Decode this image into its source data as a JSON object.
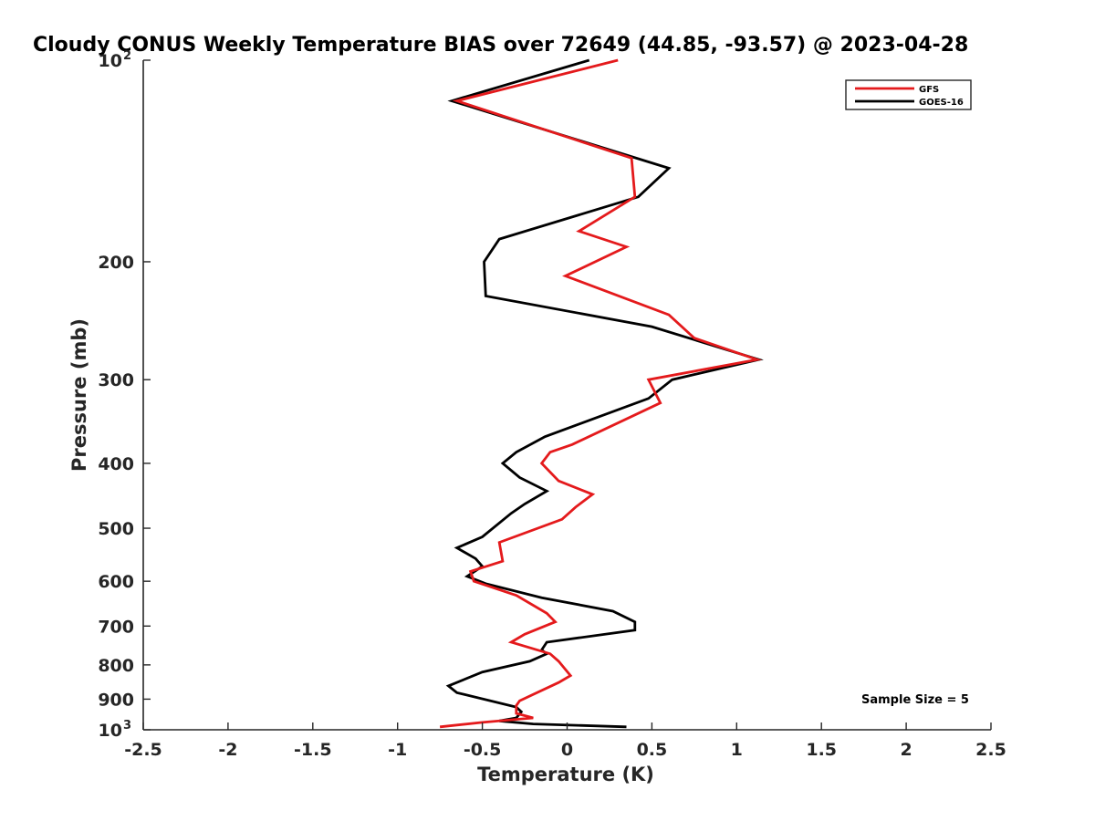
{
  "chart_data": {
    "type": "line",
    "title": "Cloudy CONUS Weekly Temperature BIAS over 72649 (44.85, -93.57) @ 2023-04-28",
    "xlabel": "Temperature (K)",
    "ylabel": "Pressure (mb)",
    "xlim": [
      -2.5,
      2.5
    ],
    "ylim": [
      1000,
      100
    ],
    "y_scale": "log",
    "y_reversed": true,
    "grid": false,
    "legend_position": "top-right",
    "x_ticks": [
      "-2.5",
      "-2",
      "-1.5",
      "-1",
      "-0.5",
      "0",
      "0.5",
      "1",
      "1.5",
      "2",
      "2.5"
    ],
    "x_tick_values": [
      -2.5,
      -2,
      -1.5,
      -1,
      -0.5,
      0,
      0.5,
      1,
      1.5,
      2,
      2.5
    ],
    "y_ticks": [
      {
        "value": 100,
        "label": "10",
        "sup": "2"
      },
      {
        "value": 200,
        "label": "200"
      },
      {
        "value": 300,
        "label": "300"
      },
      {
        "value": 400,
        "label": "400"
      },
      {
        "value": 500,
        "label": "500"
      },
      {
        "value": 600,
        "label": "600"
      },
      {
        "value": 700,
        "label": "700"
      },
      {
        "value": 800,
        "label": "800"
      },
      {
        "value": 900,
        "label": "900"
      },
      {
        "value": 1000,
        "label": "10",
        "sup": "3"
      }
    ],
    "annotation": "Sample Size = 5",
    "series": [
      {
        "name": "GFS",
        "color": "#e41a1c",
        "points": [
          [
            0.3,
            100
          ],
          [
            -0.65,
            115
          ],
          [
            0.38,
            140
          ],
          [
            0.4,
            160
          ],
          [
            0.07,
            180
          ],
          [
            0.35,
            190
          ],
          [
            -0.01,
            210
          ],
          [
            0.6,
            240
          ],
          [
            0.75,
            260
          ],
          [
            1.12,
            280
          ],
          [
            0.48,
            300
          ],
          [
            0.55,
            325
          ],
          [
            0.03,
            375
          ],
          [
            -0.1,
            385
          ],
          [
            -0.15,
            400
          ],
          [
            -0.05,
            425
          ],
          [
            0.15,
            445
          ],
          [
            0.05,
            465
          ],
          [
            -0.03,
            485
          ],
          [
            -0.4,
            525
          ],
          [
            -0.38,
            560
          ],
          [
            -0.57,
            580
          ],
          [
            -0.55,
            600
          ],
          [
            -0.3,
            630
          ],
          [
            -0.12,
            670
          ],
          [
            -0.07,
            690
          ],
          [
            -0.25,
            720
          ],
          [
            -0.33,
            740
          ],
          [
            -0.1,
            770
          ],
          [
            -0.05,
            790
          ],
          [
            0.02,
            830
          ],
          [
            -0.05,
            850
          ],
          [
            -0.28,
            905
          ],
          [
            -0.3,
            920
          ],
          [
            -0.3,
            945
          ],
          [
            -0.2,
            960
          ],
          [
            -0.5,
            975
          ],
          [
            -0.75,
            990
          ]
        ]
      },
      {
        "name": "GOES-16",
        "color": "#000000",
        "points": [
          [
            0.13,
            100
          ],
          [
            -0.68,
            115
          ],
          [
            0.6,
            145
          ],
          [
            0.42,
            160
          ],
          [
            -0.4,
            185
          ],
          [
            -0.49,
            200
          ],
          [
            -0.48,
            225
          ],
          [
            0.5,
            250
          ],
          [
            1.13,
            280
          ],
          [
            0.62,
            300
          ],
          [
            0.48,
            320
          ],
          [
            -0.13,
            365
          ],
          [
            -0.3,
            385
          ],
          [
            -0.38,
            400
          ],
          [
            -0.28,
            420
          ],
          [
            -0.12,
            440
          ],
          [
            -0.25,
            460
          ],
          [
            -0.33,
            475
          ],
          [
            -0.5,
            515
          ],
          [
            -0.65,
            535
          ],
          [
            -0.54,
            555
          ],
          [
            -0.5,
            570
          ],
          [
            -0.59,
            590
          ],
          [
            -0.48,
            605
          ],
          [
            -0.15,
            635
          ],
          [
            0.27,
            665
          ],
          [
            0.4,
            690
          ],
          [
            0.4,
            710
          ],
          [
            -0.12,
            740
          ],
          [
            -0.15,
            760
          ],
          [
            -0.12,
            770
          ],
          [
            -0.22,
            790
          ],
          [
            -0.5,
            820
          ],
          [
            -0.7,
            860
          ],
          [
            -0.65,
            880
          ],
          [
            -0.3,
            925
          ],
          [
            -0.27,
            940
          ],
          [
            -0.3,
            960
          ],
          [
            -0.4,
            970
          ],
          [
            -0.2,
            980
          ],
          [
            0.35,
            990
          ]
        ]
      }
    ]
  }
}
